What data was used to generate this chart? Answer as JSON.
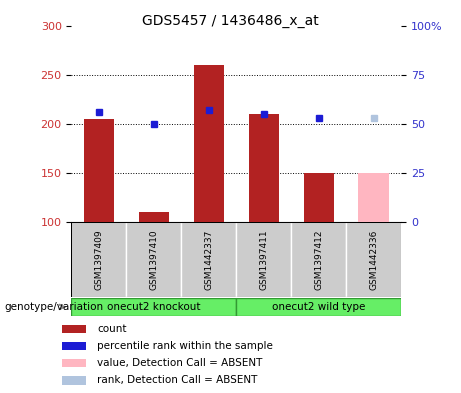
{
  "title": "GDS5457 / 1436486_x_at",
  "samples": [
    "GSM1397409",
    "GSM1397410",
    "GSM1442337",
    "GSM1397411",
    "GSM1397412",
    "GSM1442336"
  ],
  "count_values": [
    205,
    110,
    260,
    210,
    150,
    150
  ],
  "rank_values": [
    56,
    50,
    57,
    55,
    53,
    53
  ],
  "absent_flags": [
    false,
    false,
    false,
    false,
    false,
    true
  ],
  "bar_bottom": 100,
  "ylim_left": [
    100,
    300
  ],
  "ylim_right": [
    0,
    100
  ],
  "yticks_left": [
    100,
    150,
    200,
    250,
    300
  ],
  "yticks_right": [
    0,
    25,
    50,
    75,
    100
  ],
  "ytick_labels_right": [
    "0",
    "25",
    "50",
    "75",
    "100%"
  ],
  "bar_color_present": "#B22222",
  "bar_color_absent": "#FFB6C1",
  "rank_color_present": "#1C1CD4",
  "rank_color_absent": "#B0C4DE",
  "rank_marker_size": 5,
  "bar_width": 0.55,
  "bg_color": "#CCCCCC",
  "group1_label": "onecut2 knockout",
  "group2_label": "onecut2 wild type",
  "group_color": "#66EE66",
  "group_border_color": "#339933",
  "genotype_label": "genotype/variation",
  "legend_items": [
    {
      "label": "count",
      "color": "#B22222"
    },
    {
      "label": "percentile rank within the sample",
      "color": "#1C1CD4"
    },
    {
      "label": "value, Detection Call = ABSENT",
      "color": "#FFB6C1"
    },
    {
      "label": "rank, Detection Call = ABSENT",
      "color": "#B0C4DE"
    }
  ],
  "left_axis_color": "#CC3333",
  "right_axis_color": "#3333CC",
  "dotted_lines": [
    150,
    200,
    250
  ],
  "title_fontsize": 10,
  "axis_fontsize": 8,
  "label_fontsize": 7,
  "legend_fontsize": 7.5
}
